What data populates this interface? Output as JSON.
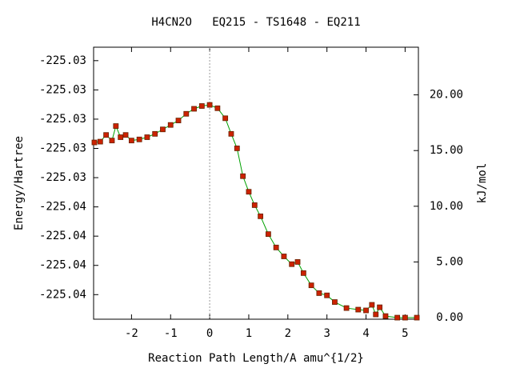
{
  "chart_data": {
    "type": "line",
    "title": "H4CN2O   EQ215 - TS1648 - EQ211",
    "xlabel": "Reaction Path Length/A amu^{1/2}",
    "ylabel": "Energy/Hartree",
    "y2label": "kJ/mol",
    "x": [
      -2.95,
      -2.8,
      -2.65,
      -2.5,
      -2.4,
      -2.28,
      -2.15,
      -2.0,
      -1.8,
      -1.6,
      -1.4,
      -1.2,
      -1.0,
      -0.8,
      -0.6,
      -0.4,
      -0.2,
      0,
      0.2,
      0.4,
      0.55,
      0.7,
      0.85,
      1.0,
      1.15,
      1.3,
      1.5,
      1.7,
      1.9,
      2.1,
      2.25,
      2.4,
      2.6,
      2.8,
      3.0,
      3.2,
      3.5,
      3.8,
      4.0,
      4.15,
      4.25,
      4.35,
      4.5,
      4.8,
      5.0,
      5.3
    ],
    "series": [
      {
        "name": "kJ/mol",
        "color": "#00a000",
        "marker_color": "#cc2200",
        "axis": "y2",
        "values": [
          15.73,
          15.8,
          16.4,
          15.9,
          17.2,
          16.2,
          16.4,
          15.9,
          16.0,
          16.2,
          16.5,
          16.9,
          17.3,
          17.7,
          18.3,
          18.75,
          19.0,
          19.1,
          18.8,
          17.9,
          16.5,
          15.2,
          12.7,
          11.3,
          10.1,
          9.1,
          7.5,
          6.3,
          5.5,
          4.8,
          5.0,
          4.0,
          2.9,
          2.2,
          2.0,
          1.4,
          0.86,
          0.72,
          0.65,
          1.15,
          0.29,
          0.93,
          0.14,
          0.0,
          0.0,
          0.0
        ]
      }
    ],
    "xlim": [
      -2.97,
      5.34
    ],
    "xticks": [
      -2,
      -1,
      0,
      1,
      2,
      3,
      4,
      5
    ],
    "ylim": [
      -225.03944,
      -225.03014
    ],
    "yticks": [
      {
        "value": -225.0386,
        "label": "-225.04"
      },
      {
        "value": -225.0376,
        "label": "-225.04"
      },
      {
        "value": -225.0366,
        "label": "-225.04"
      },
      {
        "value": -225.0356,
        "label": "-225.04"
      },
      {
        "value": -225.0346,
        "label": "-225.03"
      },
      {
        "value": -225.0336,
        "label": "-225.03"
      },
      {
        "value": -225.0326,
        "label": "-225.03"
      },
      {
        "value": -225.0316,
        "label": "-225.03"
      },
      {
        "value": -225.0306,
        "label": "-225.03"
      }
    ],
    "y2lim": [
      -0.14,
      24.28
    ],
    "y2ticks": [
      {
        "value": 0,
        "label": "0.00"
      },
      {
        "value": 5,
        "label": "5.00"
      },
      {
        "value": 10,
        "label": "10.00"
      },
      {
        "value": 15,
        "label": "15.00"
      },
      {
        "value": 20,
        "label": "20.00"
      }
    ],
    "ts_line_x": 0
  }
}
